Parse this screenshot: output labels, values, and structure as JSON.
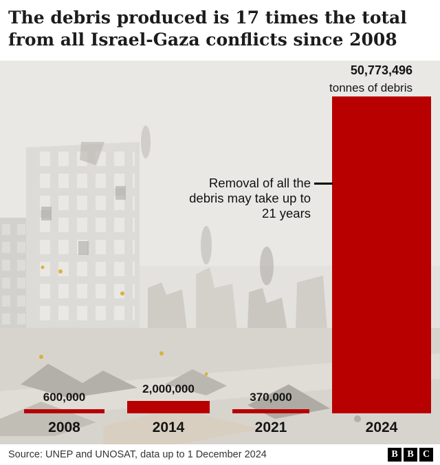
{
  "header": {
    "title": "The debris produced is 17 times the total from all Israel-Gaza conflicts since 2008"
  },
  "chart_data": {
    "type": "bar",
    "categories": [
      "2008",
      "2014",
      "2021",
      "2024"
    ],
    "values": [
      600000,
      2000000,
      370000,
      50773496
    ],
    "value_labels": [
      "600,000",
      "2,000,000",
      "370,000",
      "50,773,496"
    ],
    "unit_label": "tonnes of debris",
    "annotation": "Removal of all the debris may take up to 21 years",
    "bar_color": "#b80000",
    "ylim": [
      0,
      50773496
    ],
    "grid": false,
    "legend": "none",
    "background_color": "#e9e8e5"
  },
  "footer": {
    "source": "Source: UNEP and UNOSAT, data up to 1 December 2024",
    "logo_letters": [
      "B",
      "B",
      "C"
    ]
  }
}
